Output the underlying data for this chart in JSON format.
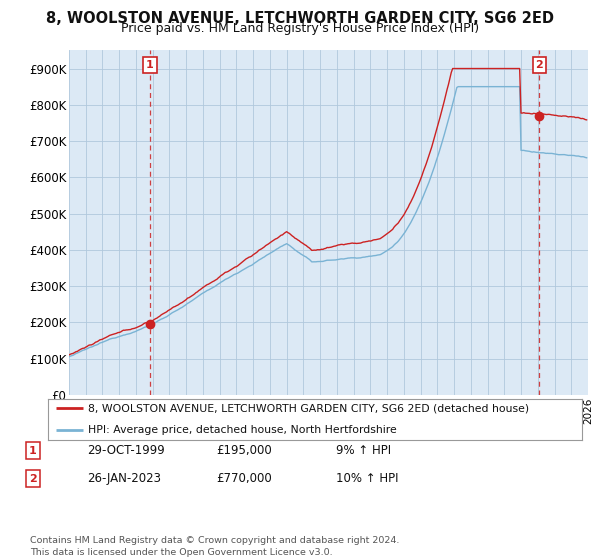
{
  "title": "8, WOOLSTON AVENUE, LETCHWORTH GARDEN CITY, SG6 2ED",
  "subtitle": "Price paid vs. HM Land Registry's House Price Index (HPI)",
  "ylim": [
    0,
    950000
  ],
  "yticks": [
    0,
    100000,
    200000,
    300000,
    400000,
    500000,
    600000,
    700000,
    800000,
    900000
  ],
  "ytick_labels": [
    "£0",
    "£100K",
    "£200K",
    "£300K",
    "£400K",
    "£500K",
    "£600K",
    "£700K",
    "£800K",
    "£900K"
  ],
  "x_start_year": 1995,
  "x_end_year": 2026,
  "sale1_month": 58,
  "sale1_price": 195000,
  "sale2_month": 337,
  "sale2_price": 770000,
  "legend_line1": "8, WOOLSTON AVENUE, LETCHWORTH GARDEN CITY, SG6 2ED (detached house)",
  "legend_line2": "HPI: Average price, detached house, North Hertfordshire",
  "ann1_date": "29-OCT-1999",
  "ann1_price": "£195,000",
  "ann1_hpi": "9% ↑ HPI",
  "ann2_date": "26-JAN-2023",
  "ann2_price": "£770,000",
  "ann2_hpi": "10% ↑ HPI",
  "footer": "Contains HM Land Registry data © Crown copyright and database right 2024.\nThis data is licensed under the Open Government Licence v3.0.",
  "hpi_color": "#7ab3d4",
  "price_color": "#cc2222",
  "chart_bg": "#dce9f5",
  "fig_bg": "#ffffff",
  "grid_color": "#b0c8dc",
  "dashed_line_color": "#cc2222",
  "title_fontsize": 10.5,
  "subtitle_fontsize": 9
}
